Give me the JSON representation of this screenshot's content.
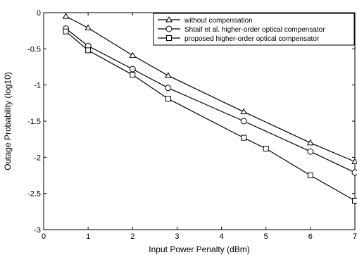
{
  "chart_data": {
    "type": "line",
    "title": "",
    "xlabel": "Input Power Penalty (dBm)",
    "ylabel": "Outage Probability (log10)",
    "xlim": [
      0,
      7
    ],
    "ylim": [
      -3,
      0
    ],
    "xticks": [
      0,
      1,
      2,
      3,
      4,
      5,
      6,
      7
    ],
    "yticks": [
      0,
      -0.5,
      -1,
      -1.5,
      -2,
      -2.5,
      -3
    ],
    "xtick_labels": [
      "0",
      "1",
      "2",
      "3",
      "4",
      "5",
      "6",
      "7"
    ],
    "ytick_labels": [
      "0",
      "-0.5",
      "-1",
      "-1.5",
      "-2",
      "-2.5",
      "-3"
    ],
    "grid": false,
    "legend_position": "top-right",
    "series": [
      {
        "name": "without compensation",
        "marker": "triangle",
        "color": "#000000",
        "x": [
          0.5,
          1,
          2,
          2.8,
          4.5,
          6,
          7
        ],
        "y": [
          -0.05,
          -0.21,
          -0.59,
          -0.87,
          -1.37,
          -1.8,
          -2.06
        ]
      },
      {
        "name": "Shtaif et al. higher-order optical compensator",
        "marker": "circle",
        "color": "#000000",
        "x": [
          0.5,
          1,
          2,
          2.8,
          4.5,
          6,
          7
        ],
        "y": [
          -0.22,
          -0.46,
          -0.78,
          -1.04,
          -1.5,
          -1.92,
          -2.21
        ]
      },
      {
        "name": "proposed higher-order optical compensator",
        "marker": "square",
        "color": "#000000",
        "x": [
          0.5,
          1,
          2,
          2.8,
          4.5,
          5,
          6,
          7
        ],
        "y": [
          -0.26,
          -0.52,
          -0.86,
          -1.19,
          -1.73,
          -1.88,
          -2.25,
          -2.6
        ]
      }
    ]
  }
}
